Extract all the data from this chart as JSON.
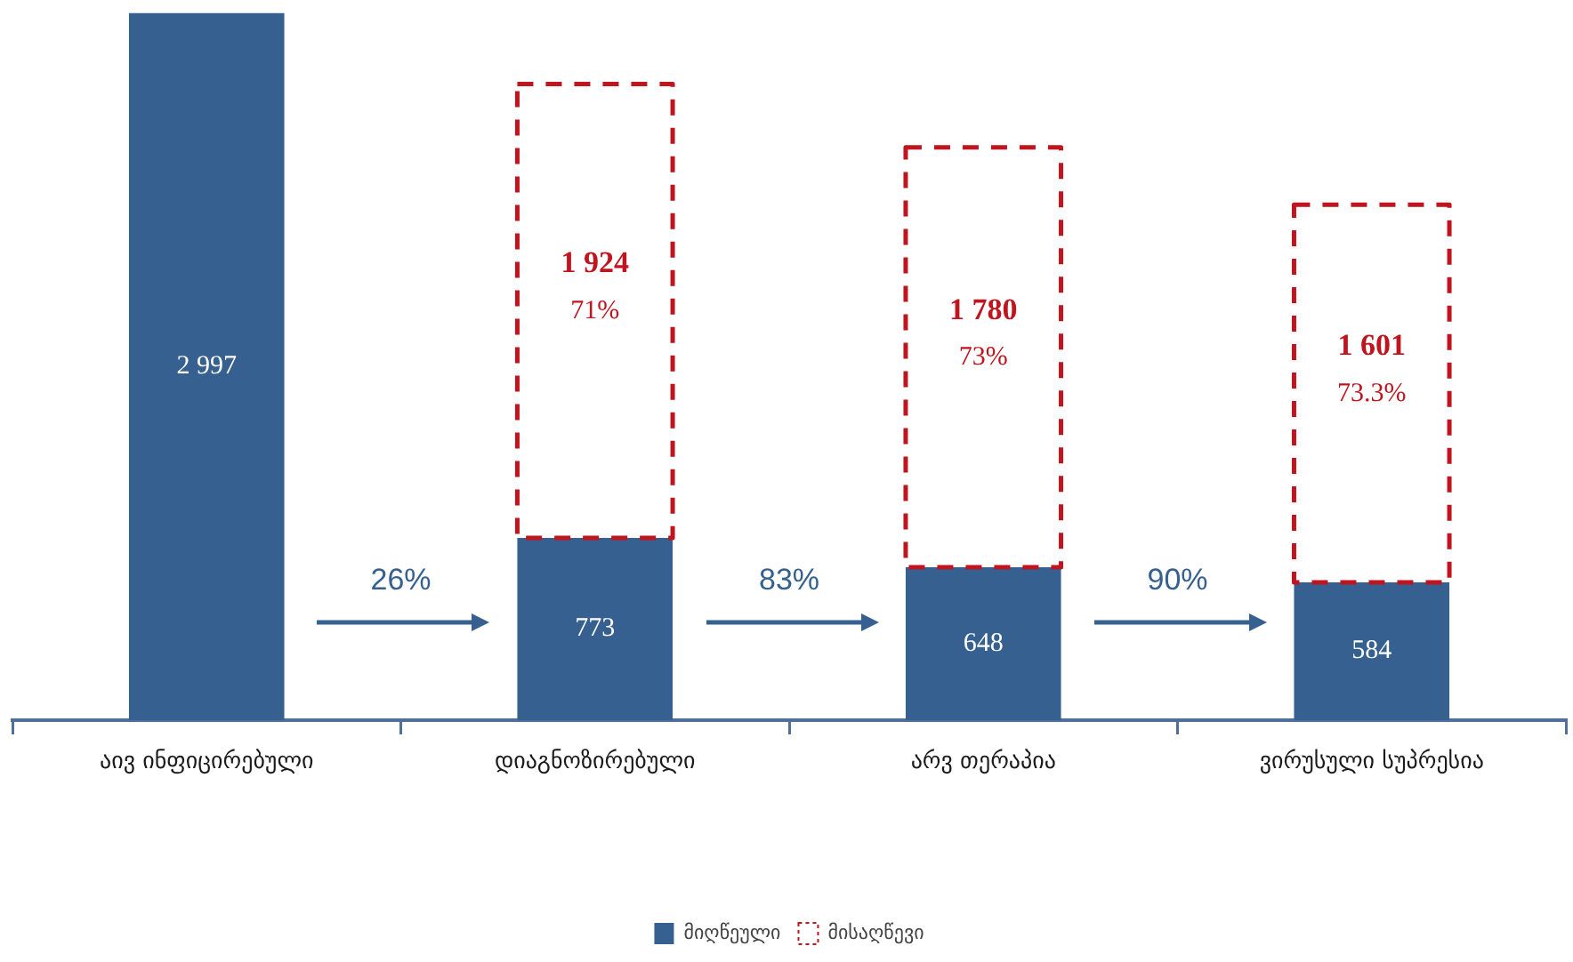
{
  "chart_data": {
    "type": "bar",
    "stacked": true,
    "categories": [
      "აივ ინფიცირებული",
      "დიაგნოზირებული",
      "არვ თერაპია",
      "ვირუსული სუპრესია"
    ],
    "series": [
      {
        "name": "მიღწეული",
        "color": "#35608f",
        "values": [
          2997,
          773,
          648,
          584
        ],
        "value_labels": [
          "2 997",
          "773",
          "648",
          "584"
        ]
      },
      {
        "name": "მისაღწევი",
        "color": "#c0141e",
        "line_style": "dashed",
        "values": [
          null,
          1924,
          1780,
          1601
        ],
        "value_labels": [
          null,
          "1 924",
          "1 780",
          "1 601"
        ]
      }
    ],
    "ylim": [
      0,
      3000
    ],
    "tick_labels": "x",
    "legend": "bottom",
    "annotations": [
      "26%",
      "83%",
      "90%",
      "71%",
      "73%",
      "73.3%"
    ]
  }
}
